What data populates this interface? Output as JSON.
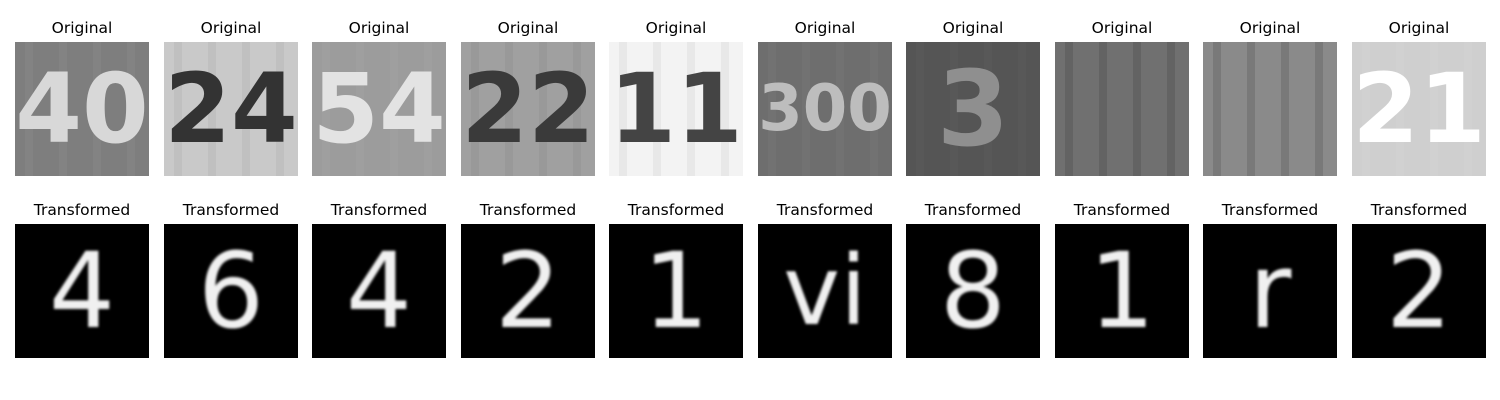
{
  "figure": {
    "rows": [
      {
        "caption": "Original",
        "panels": [
          {
            "glyph": "40",
            "bg": "#7e7e7e",
            "fg": "#d8d8d8"
          },
          {
            "glyph": "24",
            "bg": "#c9c9c9",
            "fg": "#333333"
          },
          {
            "glyph": "54",
            "bg": "#9c9c9c",
            "fg": "#e3e3e3"
          },
          {
            "glyph": "22",
            "bg": "#a0a0a0",
            "fg": "#3a3a3a"
          },
          {
            "glyph": "11",
            "bg": "#f3f3f3",
            "fg": "#444444"
          },
          {
            "glyph": "300",
            "bg": "#6e6e6e",
            "fg": "#bdbdbd"
          },
          {
            "glyph": "3",
            "bg": "#555555",
            "fg": "#8f8f8f"
          },
          {
            "glyph": "",
            "bg": "#707070",
            "fg": "#4a4a4a"
          },
          {
            "glyph": "",
            "bg": "#8a8a8a",
            "fg": "#5a5a5a"
          },
          {
            "glyph": "21",
            "bg": "#cfcfcf",
            "fg": "#ffffff"
          }
        ]
      },
      {
        "caption": "Transformed",
        "panels": [
          {
            "glyph": "4",
            "bg": "#000000",
            "fg": "#f0f0f0"
          },
          {
            "glyph": "6",
            "bg": "#000000",
            "fg": "#f0f0f0"
          },
          {
            "glyph": "4",
            "bg": "#000000",
            "fg": "#f0f0f0"
          },
          {
            "glyph": "2",
            "bg": "#000000",
            "fg": "#f0f0f0"
          },
          {
            "glyph": "1",
            "bg": "#000000",
            "fg": "#f0f0f0"
          },
          {
            "glyph": "vi",
            "bg": "#000000",
            "fg": "#f0f0f0"
          },
          {
            "glyph": "8",
            "bg": "#000000",
            "fg": "#f0f0f0"
          },
          {
            "glyph": "1",
            "bg": "#000000",
            "fg": "#f0f0f0"
          },
          {
            "glyph": "r",
            "bg": "#000000",
            "fg": "#f0f0f0"
          },
          {
            "glyph": "2",
            "bg": "#000000",
            "fg": "#f0f0f0"
          }
        ]
      }
    ]
  }
}
